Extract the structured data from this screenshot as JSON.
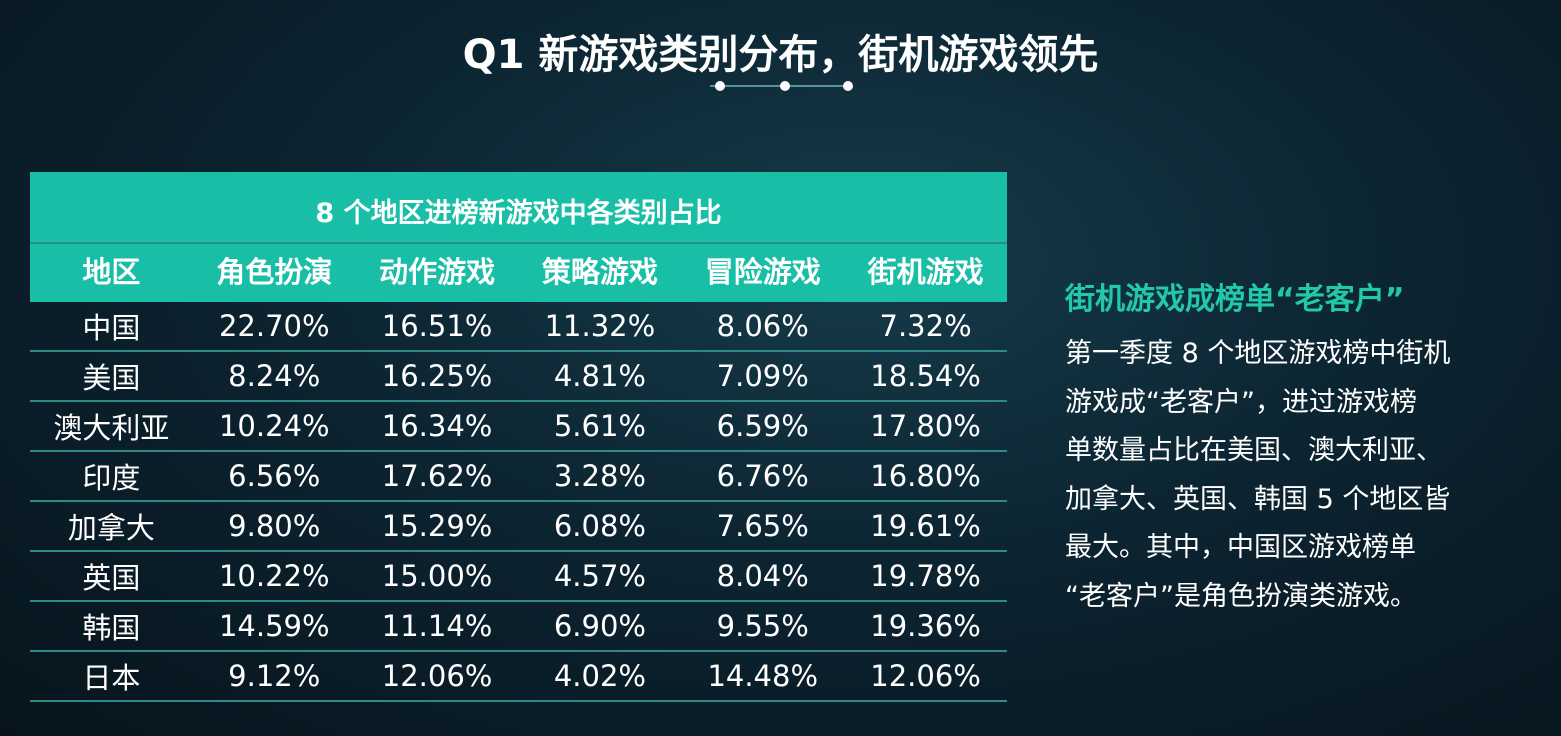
{
  "header": {
    "title": "Q1 新游戏类别分布，街机游戏领先"
  },
  "table": {
    "caption": "8 个地区进榜新游戏中各类别占比",
    "headers": [
      "地区",
      "角色扮演",
      "动作游戏",
      "策略游戏",
      "冒险游戏",
      "街机游戏"
    ],
    "rows": [
      [
        "中国",
        "22.70%",
        "16.51%",
        "11.32%",
        "8.06%",
        "7.32%"
      ],
      [
        "美国",
        "8.24%",
        "16.25%",
        "4.81%",
        "7.09%",
        "18.54%"
      ],
      [
        "澳大利亚",
        "10.24%",
        "16.34%",
        "5.61%",
        "6.59%",
        "17.80%"
      ],
      [
        "印度",
        "6.56%",
        "17.62%",
        "3.28%",
        "6.76%",
        "16.80%"
      ],
      [
        "加拿大",
        "9.80%",
        "15.29%",
        "6.08%",
        "7.65%",
        "19.61%"
      ],
      [
        "英国",
        "10.22%",
        "15.00%",
        "4.57%",
        "8.04%",
        "19.78%"
      ],
      [
        "韩国",
        "14.59%",
        "11.14%",
        "6.90%",
        "9.55%",
        "19.36%"
      ],
      [
        "日本",
        "9.12%",
        "12.06%",
        "4.02%",
        "14.48%",
        "12.06%"
      ]
    ]
  },
  "side": {
    "heading": "街机游戏成榜单“老客户”",
    "lines": [
      "第一季度 8 个地区游戏榜中街机",
      "游戏成“老客户”，进过游戏榜",
      "单数量占比在美国、澳大利亚、",
      "加拿大、英国、韩国 5 个地区皆",
      "最大。其中，中国区游戏榜单",
      "“老客户”是角色扮演类游戏。"
    ]
  }
}
